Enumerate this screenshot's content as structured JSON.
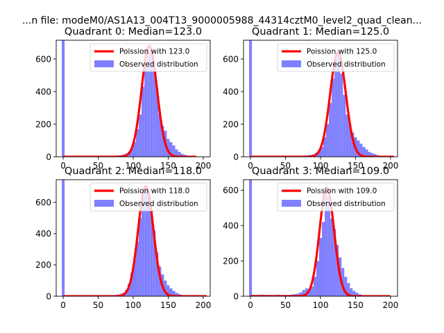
{
  "figure": {
    "suptitle": "...n file: modeM0/AS1A13_004T13_9000005988_44314cztM0_level2_quad_clean..."
  },
  "chart_data": [
    {
      "type": "bar",
      "title": "Quadrant 0: Median=123.0",
      "xlim": [
        -10,
        210
      ],
      "ylim": [
        0,
        715
      ],
      "xticks": [
        0,
        50,
        100,
        150,
        200
      ],
      "yticks": [
        0,
        200,
        400,
        600
      ],
      "legend_position": "top-right",
      "series": [
        {
          "name": "Poission with 123.0",
          "kind": "line",
          "color": "#ff0000",
          "mean": 123.0,
          "peak": 680,
          "width": 11.1,
          "x_range": [
            0,
            190
          ]
        },
        {
          "name": "Observed distribution",
          "kind": "histogram",
          "color": "#8080ff",
          "bins": [
            [
              -2,
              2,
              715
            ],
            [
              60,
              64,
              3
            ],
            [
              64,
              68,
              3
            ],
            [
              68,
              72,
              4
            ],
            [
              72,
              76,
              6
            ],
            [
              76,
              80,
              8
            ],
            [
              80,
              84,
              10
            ],
            [
              84,
              88,
              14
            ],
            [
              88,
              92,
              20
            ],
            [
              92,
              96,
              30
            ],
            [
              96,
              100,
              50
            ],
            [
              100,
              104,
              90
            ],
            [
              104,
              108,
              170
            ],
            [
              108,
              112,
              260
            ],
            [
              112,
              116,
              430
            ],
            [
              116,
              120,
              560
            ],
            [
              120,
              124,
              640
            ],
            [
              124,
              128,
              670
            ],
            [
              128,
              132,
              560
            ],
            [
              132,
              136,
              420
            ],
            [
              136,
              140,
              260
            ],
            [
              140,
              144,
              190
            ],
            [
              144,
              148,
              160
            ],
            [
              148,
              152,
              110
            ],
            [
              152,
              156,
              90
            ],
            [
              156,
              160,
              70
            ],
            [
              160,
              164,
              45
            ],
            [
              164,
              168,
              30
            ],
            [
              168,
              172,
              18
            ],
            [
              172,
              176,
              12
            ],
            [
              176,
              180,
              7
            ],
            [
              180,
              184,
              4
            ],
            [
              184,
              188,
              2
            ]
          ]
        }
      ]
    },
    {
      "type": "bar",
      "title": "Quadrant 1: Median=125.0",
      "xlim": [
        -10,
        210
      ],
      "ylim": [
        0,
        715
      ],
      "xticks": [
        0,
        50,
        100,
        150,
        200
      ],
      "yticks": [
        0,
        200,
        400,
        600
      ],
      "legend_position": "top-right",
      "series": [
        {
          "name": "Poission with 125.0",
          "kind": "line",
          "color": "#ff0000",
          "mean": 125.0,
          "peak": 640,
          "width": 11.2,
          "x_range": [
            0,
            205
          ]
        },
        {
          "name": "Observed distribution",
          "kind": "histogram",
          "color": "#8080ff",
          "bins": [
            [
              -2,
              2,
              715
            ],
            [
              60,
              64,
              3
            ],
            [
              64,
              68,
              3
            ],
            [
              68,
              72,
              4
            ],
            [
              72,
              76,
              5
            ],
            [
              76,
              80,
              7
            ],
            [
              80,
              84,
              9
            ],
            [
              84,
              88,
              12
            ],
            [
              88,
              92,
              15
            ],
            [
              92,
              96,
              25
            ],
            [
              96,
              100,
              35
            ],
            [
              100,
              104,
              60
            ],
            [
              104,
              108,
              120
            ],
            [
              108,
              112,
              200
            ],
            [
              112,
              116,
              330
            ],
            [
              116,
              120,
              480
            ],
            [
              120,
              124,
              600
            ],
            [
              124,
              128,
              630
            ],
            [
              128,
              132,
              510
            ],
            [
              132,
              136,
              380
            ],
            [
              136,
              140,
              260
            ],
            [
              140,
              144,
              200
            ],
            [
              144,
              148,
              150
            ],
            [
              148,
              152,
              120
            ],
            [
              152,
              156,
              100
            ],
            [
              156,
              160,
              80
            ],
            [
              160,
              164,
              60
            ],
            [
              164,
              168,
              45
            ],
            [
              168,
              172,
              30
            ],
            [
              172,
              176,
              22
            ],
            [
              176,
              180,
              16
            ],
            [
              180,
              184,
              10
            ],
            [
              184,
              188,
              6
            ],
            [
              188,
              192,
              4
            ],
            [
              192,
              196,
              2
            ]
          ]
        }
      ]
    },
    {
      "type": "bar",
      "title": "Quadrant 2: Median=118.0",
      "xlim": [
        -10,
        210
      ],
      "ylim": [
        0,
        745
      ],
      "xticks": [
        0,
        50,
        100,
        150,
        200
      ],
      "yticks": [
        0,
        200,
        400,
        600
      ],
      "legend_position": "top-right",
      "series": [
        {
          "name": "Poission with 118.0",
          "kind": "line",
          "color": "#ff0000",
          "mean": 118.0,
          "peak": 705,
          "width": 10.9,
          "x_range": [
            0,
            205
          ]
        },
        {
          "name": "Observed distribution",
          "kind": "histogram",
          "color": "#8080ff",
          "bins": [
            [
              -2,
              2,
              745
            ],
            [
              60,
              64,
              2
            ],
            [
              64,
              68,
              3
            ],
            [
              68,
              72,
              5
            ],
            [
              72,
              76,
              7
            ],
            [
              76,
              80,
              10
            ],
            [
              80,
              84,
              15
            ],
            [
              84,
              88,
              22
            ],
            [
              88,
              92,
              40
            ],
            [
              92,
              96,
              80
            ],
            [
              96,
              100,
              150
            ],
            [
              100,
              104,
              240
            ],
            [
              104,
              108,
              350
            ],
            [
              108,
              112,
              500
            ],
            [
              112,
              116,
              640
            ],
            [
              116,
              120,
              700
            ],
            [
              120,
              124,
              660
            ],
            [
              124,
              128,
              560
            ],
            [
              128,
              132,
              420
            ],
            [
              132,
              136,
              280
            ],
            [
              136,
              140,
              190
            ],
            [
              140,
              144,
              140
            ],
            [
              144,
              148,
              100
            ],
            [
              148,
              152,
              70
            ],
            [
              152,
              156,
              50
            ],
            [
              156,
              160,
              35
            ],
            [
              160,
              164,
              22
            ],
            [
              164,
              168,
              14
            ],
            [
              168,
              172,
              8
            ],
            [
              172,
              176,
              5
            ],
            [
              176,
              180,
              3
            ]
          ]
        }
      ]
    },
    {
      "type": "bar",
      "title": "Quadrant 3: Median=109.0",
      "xlim": [
        -10,
        210
      ],
      "ylim": [
        0,
        660
      ],
      "xticks": [
        0,
        50,
        100,
        150,
        200
      ],
      "yticks": [
        0,
        200,
        400,
        600
      ],
      "legend_position": "top-right",
      "series": [
        {
          "name": "Poission with 109.0",
          "kind": "line",
          "color": "#ff0000",
          "mean": 109.0,
          "peak": 615,
          "width": 10.4,
          "x_range": [
            0,
            200
          ]
        },
        {
          "name": "Observed distribution",
          "kind": "histogram",
          "color": "#8080ff",
          "bins": [
            [
              -2,
              2,
              660
            ],
            [
              2,
              6,
              8
            ],
            [
              6,
              10,
              8
            ],
            [
              10,
              14,
              8
            ],
            [
              14,
              18,
              9
            ],
            [
              18,
              22,
              8
            ],
            [
              22,
              26,
              7
            ],
            [
              26,
              30,
              8
            ],
            [
              30,
              34,
              7
            ],
            [
              34,
              38,
              8
            ],
            [
              38,
              42,
              9
            ],
            [
              42,
              46,
              7
            ],
            [
              46,
              50,
              8
            ],
            [
              50,
              54,
              7
            ],
            [
              54,
              58,
              8
            ],
            [
              58,
              62,
              10
            ],
            [
              62,
              66,
              12
            ],
            [
              66,
              70,
              15
            ],
            [
              70,
              74,
              22
            ],
            [
              74,
              78,
              35
            ],
            [
              78,
              82,
              45
            ],
            [
              82,
              86,
              40
            ],
            [
              86,
              90,
              55
            ],
            [
              90,
              94,
              110
            ],
            [
              94,
              98,
              200
            ],
            [
              98,
              102,
              330
            ],
            [
              102,
              106,
              420
            ],
            [
              106,
              110,
              600
            ],
            [
              110,
              114,
              560
            ],
            [
              114,
              118,
              440
            ],
            [
              118,
              122,
              380
            ],
            [
              122,
              126,
              290
            ],
            [
              126,
              130,
              220
            ],
            [
              130,
              134,
              160
            ],
            [
              134,
              138,
              110
            ],
            [
              138,
              142,
              75
            ],
            [
              142,
              146,
              45
            ],
            [
              146,
              150,
              30
            ],
            [
              150,
              154,
              20
            ],
            [
              154,
              158,
              12
            ],
            [
              158,
              162,
              7
            ],
            [
              162,
              166,
              4
            ],
            [
              166,
              170,
              2
            ]
          ]
        }
      ]
    }
  ]
}
